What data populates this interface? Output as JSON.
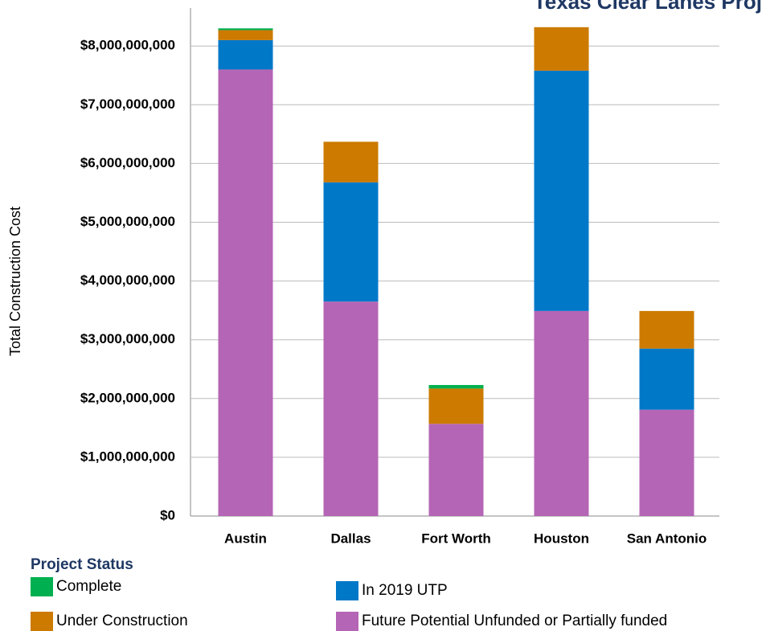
{
  "chart_data": {
    "type": "stacked_bar",
    "title": "Texas Clear Lanes Proj",
    "y_label": "Total Construction Cost",
    "legend_title": "Project Status",
    "categories": [
      "Austin",
      "Dallas",
      "Fort Worth",
      "Houston",
      "San Antonio"
    ],
    "series": [
      {
        "name": "Future Potential Unfunded or Partially funded",
        "color": "#b565b5",
        "values": [
          7600000000,
          3650000000,
          1570000000,
          3490000000,
          1810000000
        ]
      },
      {
        "name": "In 2019 UTP",
        "color": "#0078c8",
        "values": [
          500000000,
          2030000000,
          0,
          4090000000,
          1040000000
        ]
      },
      {
        "name": "Under Construction",
        "color": "#cc7a00",
        "values": [
          170000000,
          690000000,
          600000000,
          740000000,
          640000000
        ]
      },
      {
        "name": "Complete",
        "color": "#00b050",
        "values": [
          30000000,
          0,
          60000000,
          0,
          0
        ]
      }
    ],
    "ylim": [
      0,
      8500000000
    ],
    "yticks": [
      {
        "value": 0,
        "label": "$0"
      },
      {
        "value": 1000000000,
        "label": "$1,000,000,000"
      },
      {
        "value": 2000000000,
        "label": "$2,000,000,000"
      },
      {
        "value": 3000000000,
        "label": "$3,000,000,000"
      },
      {
        "value": 4000000000,
        "label": "$4,000,000,000"
      },
      {
        "value": 5000000000,
        "label": "$5,000,000,000"
      },
      {
        "value": 6000000000,
        "label": "$6,000,000,000"
      },
      {
        "value": 7000000000,
        "label": "$7,000,000,000"
      },
      {
        "value": 8000000000,
        "label": "$8,000,000,000"
      }
    ],
    "grid": true
  }
}
